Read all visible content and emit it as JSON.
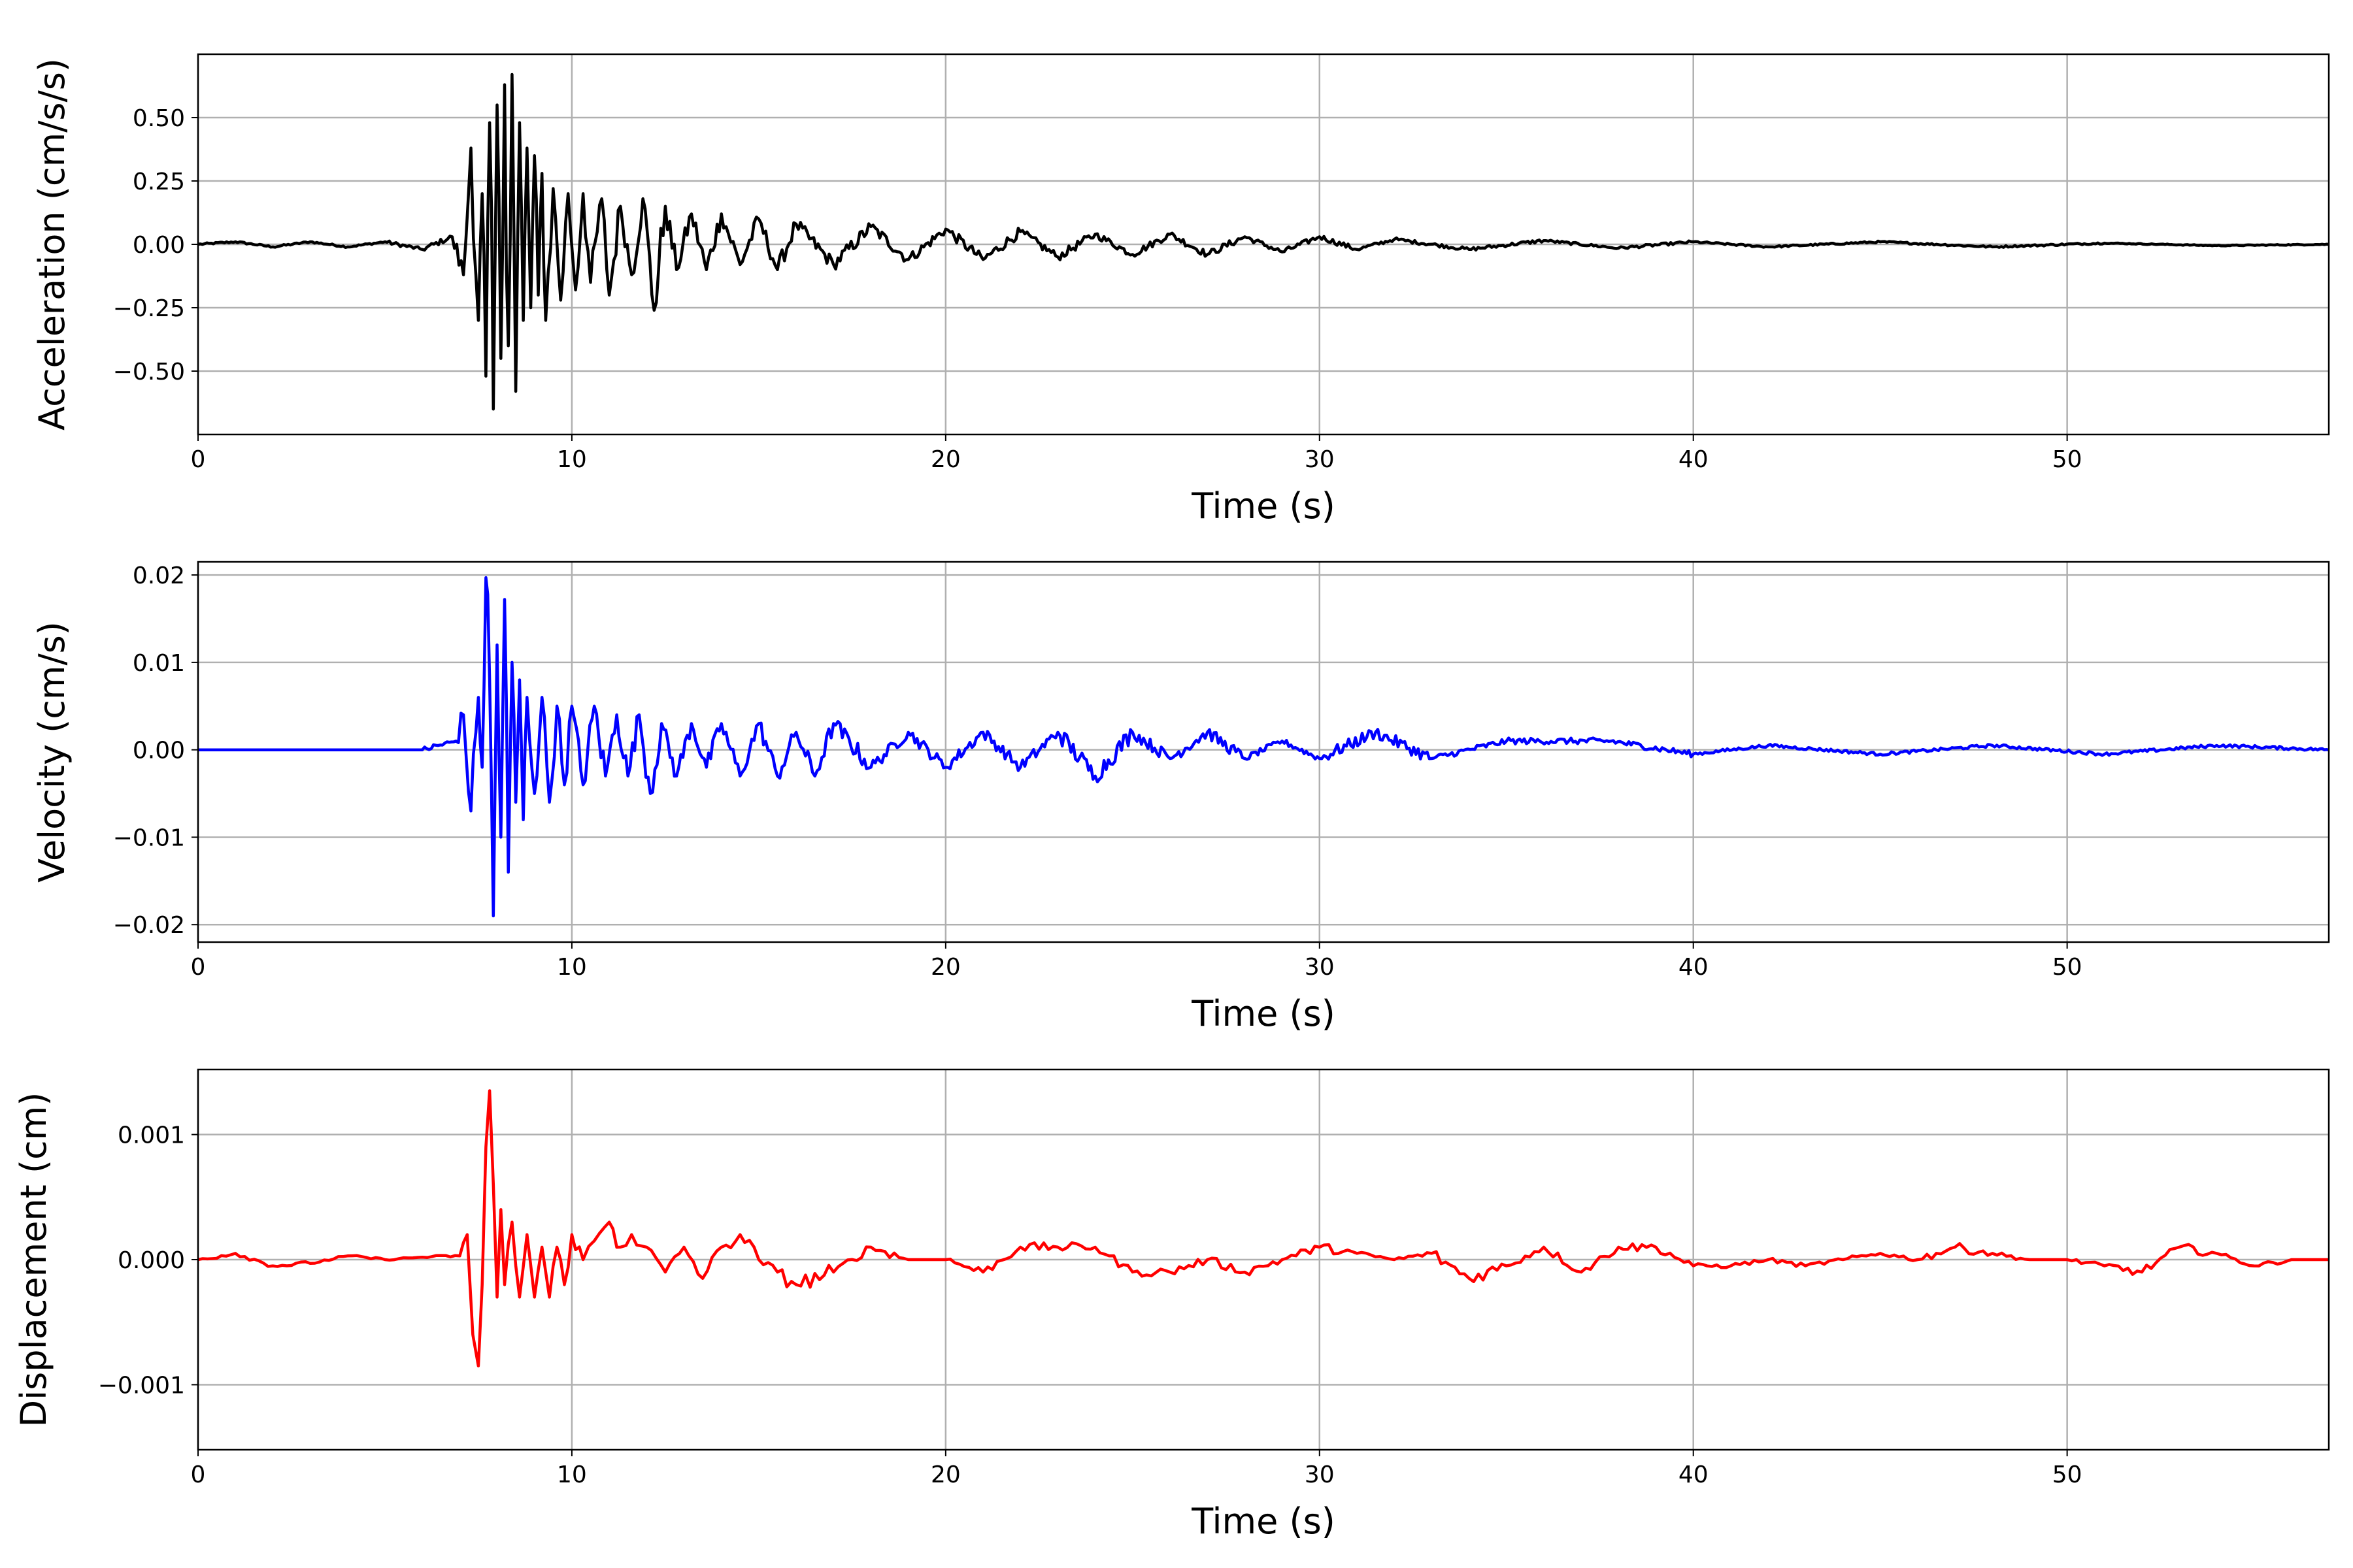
{
  "chart_data": [
    {
      "type": "line",
      "xlabel": "Time (s)",
      "ylabel": "Acceleration (cm/s/s)",
      "xlim": [
        0,
        57
      ],
      "ylim": [
        -0.75,
        0.75
      ],
      "xticks": [
        "0",
        "10",
        "20",
        "30",
        "40",
        "50"
      ],
      "yticks": [
        {
          "value": 0.5,
          "label": "0.50"
        },
        {
          "value": 0.25,
          "label": "0.25"
        },
        {
          "value": 0.0,
          "label": "0.00"
        },
        {
          "value": -0.25,
          "label": "−0.25"
        },
        {
          "value": -0.5,
          "label": "−0.50"
        }
      ],
      "grid": true,
      "color": "#000000",
      "series": [
        {
          "x": [
            0,
            1,
            2,
            3,
            4,
            5,
            6,
            6.8,
            7.1,
            7.3,
            7.5,
            7.6,
            7.7,
            7.8,
            7.9,
            8.0,
            8.1,
            8.2,
            8.3,
            8.4,
            8.5,
            8.6,
            8.7,
            8.8,
            8.9,
            9.0,
            9.1,
            9.2,
            9.3,
            9.5,
            9.7,
            9.9,
            10.1,
            10.3,
            10.5,
            10.8,
            11.0,
            11.3,
            11.6,
            11.9,
            12.2,
            12.5,
            12.8,
            13.2,
            13.6,
            14.0,
            14.5,
            15,
            15.5,
            16,
            17,
            18,
            19,
            20,
            21,
            22,
            23,
            24,
            25,
            26,
            27,
            28,
            29,
            30,
            31,
            32,
            34,
            36,
            38,
            40,
            42,
            45,
            48,
            51,
            54,
            57
          ],
          "y": [
            0,
            0.01,
            -0.01,
            0.01,
            -0.01,
            0.01,
            -0.02,
            0.03,
            -0.12,
            0.38,
            -0.3,
            0.2,
            -0.52,
            0.48,
            -0.65,
            0.55,
            -0.45,
            0.63,
            -0.4,
            0.67,
            -0.58,
            0.48,
            -0.3,
            0.38,
            -0.25,
            0.35,
            -0.2,
            0.28,
            -0.3,
            0.22,
            -0.22,
            0.2,
            -0.18,
            0.2,
            -0.15,
            0.18,
            -0.2,
            0.15,
            -0.12,
            0.18,
            -0.26,
            0.15,
            -0.1,
            0.12,
            -0.1,
            0.12,
            -0.08,
            0.1,
            -0.1,
            0.08,
            -0.08,
            0.07,
            -0.06,
            0.06,
            -0.06,
            0.05,
            -0.05,
            0.04,
            -0.04,
            0.04,
            -0.04,
            0.03,
            -0.03,
            0.03,
            -0.02,
            0.02,
            -0.02,
            0.015,
            -0.015,
            0.01,
            -0.01,
            0.01,
            -0.01,
            0.005,
            -0.005,
            0
          ]
        }
      ]
    },
    {
      "type": "line",
      "xlabel": "Time (s)",
      "ylabel": "Velocity (cm/s)",
      "xlim": [
        0,
        57
      ],
      "ylim": [
        -0.022,
        0.0215
      ],
      "xticks": [
        "0",
        "10",
        "20",
        "30",
        "40",
        "50"
      ],
      "yticks": [
        {
          "value": 0.02,
          "label": "0.02"
        },
        {
          "value": 0.01,
          "label": "0.01"
        },
        {
          "value": 0.0,
          "label": "0.00"
        },
        {
          "value": -0.01,
          "label": "−0.01"
        },
        {
          "value": -0.02,
          "label": "−0.02"
        }
      ],
      "grid": true,
      "color": "#0000ff",
      "series": [
        {
          "x": [
            0,
            2,
            4,
            6,
            6.9,
            7.1,
            7.3,
            7.5,
            7.6,
            7.7,
            7.8,
            7.9,
            8.0,
            8.1,
            8.2,
            8.3,
            8.4,
            8.5,
            8.6,
            8.7,
            8.8,
            9.0,
            9.2,
            9.4,
            9.6,
            9.8,
            10.0,
            10.3,
            10.6,
            10.9,
            11.2,
            11.5,
            11.8,
            12.1,
            12.4,
            12.8,
            13.2,
            13.6,
            14.0,
            14.5,
            15,
            15.5,
            16,
            16.5,
            17,
            18,
            19,
            20,
            21,
            22,
            23,
            24,
            25,
            26,
            27,
            28,
            29,
            30,
            31.5,
            33,
            35,
            37.8,
            40,
            42,
            45,
            48,
            51,
            54,
            57
          ],
          "y": [
            0,
            0,
            0,
            0,
            0.001,
            0.004,
            -0.007,
            0.006,
            -0.002,
            0.0197,
            0.008,
            -0.019,
            0.012,
            -0.01,
            0.0172,
            -0.014,
            0.01,
            -0.006,
            0.008,
            -0.008,
            0.006,
            -0.005,
            0.006,
            -0.006,
            0.005,
            -0.004,
            0.005,
            -0.004,
            0.005,
            -0.003,
            0.004,
            -0.003,
            0.004,
            -0.005,
            0.003,
            -0.003,
            0.003,
            -0.002,
            0.003,
            -0.003,
            0.003,
            -0.003,
            0.002,
            -0.003,
            0.003,
            -0.002,
            0.002,
            -0.002,
            0.002,
            -0.002,
            0.002,
            -0.003,
            0.002,
            -0.001,
            0.002,
            -0.001,
            0.001,
            -0.001,
            0.002,
            -0.001,
            0.001,
            0.001,
            -0.0005,
            0.0005,
            -0.0005,
            0.0005,
            -0.0005,
            0.0005,
            0
          ]
        }
      ]
    },
    {
      "type": "line",
      "xlabel": "Time (s)",
      "ylabel": "Displacement (cm)",
      "xlim": [
        0,
        57
      ],
      "ylim": [
        -0.00152,
        0.00152
      ],
      "xticks": [
        "0",
        "10",
        "20",
        "30",
        "40",
        "50"
      ],
      "yticks": [
        {
          "value": 0.001,
          "label": "0.001"
        },
        {
          "value": 0.0,
          "label": "0.000"
        },
        {
          "value": -0.001,
          "label": "−0.001"
        }
      ],
      "grid": true,
      "color": "#ff0000",
      "series": [
        {
          "x": [
            0,
            1,
            2,
            3,
            4,
            5,
            6,
            7,
            7.2,
            7.35,
            7.5,
            7.6,
            7.7,
            7.8,
            7.9,
            8.0,
            8.1,
            8.2,
            8.4,
            8.6,
            8.8,
            9.0,
            9.2,
            9.4,
            9.6,
            9.8,
            10.0,
            10.3,
            10.6,
            11.0,
            11.3,
            11.6,
            12,
            12.5,
            13,
            13.5,
            14,
            14.5,
            15,
            15.5,
            16,
            17,
            18,
            19,
            20,
            21,
            22,
            23,
            24,
            25,
            26,
            27,
            28,
            29,
            30,
            31,
            32,
            33,
            34,
            35,
            36,
            37,
            38,
            39,
            40,
            41,
            42,
            43,
            44,
            45,
            46,
            47,
            48,
            49,
            50,
            51,
            52,
            53,
            54,
            55,
            56,
            57
          ],
          "y": [
            0,
            5e-05,
            -5e-05,
            -3e-05,
            3e-05,
            0,
            2e-05,
            3e-05,
            0.0002,
            -0.0006,
            -0.00085,
            -0.0002,
            0.0009,
            0.00135,
            0.0006,
            -0.0003,
            0.0004,
            -0.0002,
            0.0003,
            -0.0003,
            0.0002,
            -0.0003,
            0.0001,
            -0.0003,
            0.0001,
            -0.0002,
            0.0002,
            0,
            0.00015,
            0.0003,
            0.0001,
            0.0002,
            0.0001,
            -0.0001,
            0.0001,
            -0.00015,
            0.0001,
            0.0002,
            0,
            -0.0001,
            -0.0002,
            -0.0001,
            0.0001,
            0,
            0,
            -0.0001,
            0.0001,
            0.0001,
            0.0001,
            -0.0001,
            -0.0001,
            0,
            -0.0001,
            0,
            0.0001,
            5e-05,
            0,
            5e-05,
            -0.00015,
            -5e-05,
            0.0001,
            -0.0001,
            0.0001,
            0.0001,
            -5e-05,
            -5e-05,
            0,
            -5e-05,
            0,
            5e-05,
            0,
            0.0001,
            5e-05,
            0,
            0,
            -5e-05,
            -0.0001,
            0.0001,
            5e-05,
            -5e-05,
            0,
            0
          ]
        }
      ]
    }
  ]
}
